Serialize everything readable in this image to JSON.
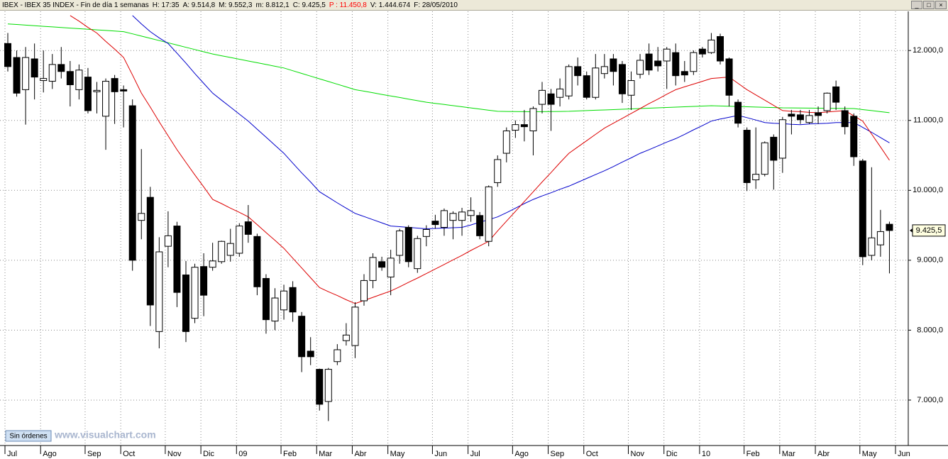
{
  "chart_data": {
    "type": "candlestick",
    "header": [
      {
        "text": "IBEX - IBEX 35 INDEX - Fin de día 1 semanas",
        "color": "#000000"
      },
      {
        "text": "H: 17:35",
        "color": "#000000"
      },
      {
        "text": "A: 9.514,8",
        "color": "#000000"
      },
      {
        "text": "M: 9.552,3",
        "color": "#000000"
      },
      {
        "text": "m: 8.812,1",
        "color": "#000000"
      },
      {
        "text": "C: 9.425,5",
        "color": "#000000"
      },
      {
        "text": "P : 11.450,8",
        "color": "#ff0000"
      },
      {
        "text": "V: 1.444.674",
        "color": "#000000"
      },
      {
        "text": "F: 28/05/2010",
        "color": "#000000"
      }
    ],
    "categories": [
      "Jul",
      null,
      null,
      null,
      "Ago",
      null,
      null,
      null,
      null,
      "Sep",
      null,
      null,
      null,
      "Oct",
      null,
      null,
      null,
      null,
      "Nov",
      null,
      null,
      null,
      "Dic",
      null,
      null,
      null,
      "09",
      null,
      null,
      null,
      null,
      "Feb",
      null,
      null,
      null,
      "Mar",
      null,
      null,
      null,
      "Abr",
      null,
      null,
      null,
      "May",
      null,
      null,
      null,
      null,
      "Jun",
      null,
      null,
      null,
      "Jul",
      null,
      null,
      null,
      null,
      "Ago",
      null,
      null,
      null,
      "Sep",
      null,
      null,
      null,
      "Oct",
      null,
      null,
      null,
      null,
      "Nov",
      null,
      null,
      null,
      "Dic",
      null,
      null,
      null,
      "10",
      null,
      null,
      null,
      null,
      "Feb",
      null,
      null,
      null,
      "Mar",
      null,
      null,
      null,
      "Abr",
      null,
      null,
      null,
      null,
      "May",
      null,
      null,
      null,
      "Jun"
    ],
    "open": [
      12100,
      11900,
      11440,
      11880,
      11570,
      11560,
      11800,
      11700,
      11440,
      11620,
      11410,
      11060,
      11600,
      11440,
      11210,
      9570,
      9900,
      7980,
      9200,
      9490,
      8790,
      8170,
      8910,
      8900,
      8980,
      9070,
      9100,
      9550,
      9340,
      8740,
      8130,
      8290,
      8610,
      8200,
      7700,
      7440,
      6980,
      7550,
      7850,
      7780,
      8420,
      8710,
      8980,
      8760,
      9070,
      9470,
      8880,
      9340,
      9560,
      9470,
      9570,
      9570,
      9640,
      9640,
      9270,
      10110,
      10530,
      10860,
      10940,
      10850,
      11230,
      11380,
      11330,
      11350,
      11770,
      11640,
      11330,
      11670,
      11880,
      11800,
      11360,
      11660,
      11950,
      11850,
      11850,
      11970,
      11700,
      11700,
      12020,
      11970,
      12200,
      11880,
      11260,
      10860,
      10150,
      10230,
      10760,
      10460,
      11090,
      11080,
      10970,
      11110,
      11140,
      11480,
      11140,
      11060,
      10420,
      9070,
      9220,
      9514.8,
      null
    ],
    "high": [
      12250,
      12000,
      12050,
      12100,
      12000,
      11950,
      12050,
      11850,
      11800,
      11750,
      11550,
      11600,
      11650,
      11500,
      11300,
      10590,
      10050,
      9330,
      9700,
      9550,
      8990,
      8950,
      9100,
      9250,
      9280,
      9450,
      9530,
      9790,
      9380,
      8800,
      8600,
      8650,
      8700,
      8260,
      7900,
      7450,
      7460,
      7800,
      8100,
      8400,
      8800,
      9100,
      9050,
      9150,
      9450,
      9500,
      9350,
      9500,
      9650,
      9740,
      9700,
      9750,
      9900,
      9690,
      10070,
      10500,
      10900,
      11000,
      11150,
      11200,
      11550,
      11450,
      11600,
      11800,
      11900,
      11700,
      11950,
      11950,
      11950,
      11850,
      11700,
      11950,
      12100,
      12050,
      12050,
      12100,
      11850,
      12000,
      12050,
      12250,
      12240,
      11900,
      11300,
      10900,
      10900,
      10700,
      10800,
      11050,
      11150,
      11150,
      11150,
      11200,
      11400,
      11570,
      11200,
      11100,
      10450,
      10330,
      9720,
      9552.3,
      null
    ],
    "low": [
      11700,
      11340,
      10940,
      11300,
      11400,
      11450,
      11600,
      11200,
      11300,
      11100,
      11100,
      10580,
      10950,
      10900,
      8850,
      9300,
      8060,
      7740,
      8900,
      8330,
      7830,
      8100,
      8200,
      8850,
      8950,
      8980,
      9050,
      9250,
      8500,
      7950,
      8000,
      8150,
      8120,
      7400,
      7500,
      6850,
      6700,
      7500,
      7780,
      7600,
      8350,
      8600,
      8850,
      8500,
      8950,
      8900,
      8820,
      9200,
      9450,
      9350,
      9300,
      9350,
      9550,
      9300,
      9200,
      10050,
      10400,
      10750,
      10700,
      10500,
      11100,
      10850,
      11200,
      11300,
      11500,
      11300,
      11300,
      11600,
      11500,
      11250,
      11150,
      11600,
      11650,
      11700,
      11450,
      11500,
      11550,
      11650,
      11900,
      11950,
      11800,
      11200,
      10900,
      9990,
      10020,
      10200,
      10010,
      10250,
      10800,
      10950,
      10950,
      10950,
      11100,
      11150,
      10800,
      10350,
      8930,
      9000,
      9050,
      8812.1,
      null
    ],
    "close": [
      11770,
      11390,
      11900,
      11620,
      11600,
      11800,
      11700,
      11510,
      11720,
      11140,
      11430,
      11560,
      11410,
      11420,
      9000,
      9670,
      8360,
      9120,
      9350,
      8540,
      7980,
      8900,
      8500,
      8990,
      9270,
      9240,
      9490,
      9370,
      8620,
      8150,
      8460,
      8560,
      8260,
      7620,
      7620,
      6940,
      7440,
      7720,
      7930,
      8330,
      8710,
      9040,
      8900,
      9030,
      9420,
      8980,
      9310,
      9440,
      9510,
      9710,
      9670,
      9690,
      9710,
      9350,
      10050,
      10440,
      10850,
      10940,
      10910,
      11170,
      11430,
      11230,
      11450,
      11770,
      11640,
      11330,
      11750,
      11770,
      11700,
      11380,
      11570,
      11860,
      11720,
      11780,
      12020,
      11640,
      11650,
      11970,
      11950,
      12150,
      11850,
      11360,
      10960,
      10110,
      10230,
      10680,
      10430,
      11010,
      11060,
      11010,
      11070,
      11070,
      11390,
      11260,
      10910,
      10480,
      9050,
      9320,
      9410,
      9425.5,
      null
    ],
    "up_color": "#ffffff",
    "down_color": "#000000",
    "lines": [
      {
        "color": "#00dd00",
        "values": [
          12380,
          12372,
          12363,
          12355,
          12346,
          12338,
          12329,
          12321,
          12312,
          12304,
          12295,
          12287,
          12278,
          12270,
          12238,
          12206,
          12174,
          12142,
          12110,
          12078,
          12046,
          12014,
          11982,
          11950,
          11925,
          11900,
          11875,
          11850,
          11825,
          11800,
          11775,
          11750,
          11711,
          11672,
          11634,
          11595,
          11556,
          11518,
          11479,
          11440,
          11418,
          11395,
          11372,
          11350,
          11328,
          11305,
          11282,
          11260,
          11244,
          11228,
          11211,
          11195,
          11179,
          11163,
          11146,
          11130,
          11128,
          11126,
          11125,
          11124,
          11125,
          11126,
          11128,
          11130,
          11135,
          11140,
          11145,
          11150,
          11155,
          11160,
          11165,
          11170,
          11175,
          11180,
          11185,
          11190,
          11195,
          11200,
          11205,
          11210,
          11206,
          11203,
          11199,
          11195,
          11191,
          11188,
          11184,
          11180,
          11179,
          11178,
          11176,
          11175,
          11174,
          11173,
          11171,
          11170,
          11155,
          11140,
          11125,
          11110,
          null
        ]
      },
      {
        "color": "#0000cc",
        "values": [
          null,
          null,
          null,
          null,
          null,
          null,
          null,
          null,
          null,
          null,
          null,
          null,
          null,
          null,
          12500,
          12380,
          12270,
          12180,
          12100,
          11960,
          11820,
          11670,
          11530,
          11390,
          11290,
          11190,
          11090,
          10990,
          10875,
          10760,
          10645,
          10530,
          10390,
          10250,
          10120,
          9980,
          9900,
          9820,
          9745,
          9670,
          9625,
          9580,
          9535,
          9490,
          9480,
          9470,
          9460,
          9450,
          9455,
          9460,
          9465,
          9470,
          9505,
          9545,
          9580,
          9620,
          9680,
          9745,
          9810,
          9870,
          9920,
          9965,
          10015,
          10060,
          10115,
          10170,
          10225,
          10280,
          10340,
          10405,
          10465,
          10530,
          10580,
          10635,
          10690,
          10740,
          10800,
          10865,
          10925,
          10990,
          11020,
          11045,
          11070,
          11040,
          11005,
          10970,
          10960,
          10955,
          10945,
          10940,
          10950,
          10955,
          10960,
          10970,
          10970,
          10970,
          10900,
          10830,
          10755,
          10680,
          null
        ]
      },
      {
        "color": "#dd0000",
        "values": [
          null,
          null,
          null,
          null,
          null,
          null,
          null,
          12500,
          12420,
          12330,
          12250,
          12130,
          12020,
          11900,
          11650,
          11390,
          11190,
          10980,
          10780,
          10580,
          10400,
          10220,
          10050,
          9870,
          9810,
          9745,
          9685,
          9620,
          9510,
          9395,
          9285,
          9170,
          9030,
          8890,
          8750,
          8610,
          8550,
          8495,
          8435,
          8380,
          8425,
          8470,
          8515,
          8560,
          8620,
          8685,
          8745,
          8810,
          8875,
          8940,
          9005,
          9070,
          9140,
          9205,
          9270,
          9420,
          9560,
          9700,
          9840,
          9980,
          10120,
          10255,
          10395,
          10530,
          10620,
          10710,
          10800,
          10890,
          10960,
          11030,
          11100,
          11170,
          11240,
          11305,
          11375,
          11440,
          11480,
          11520,
          11560,
          11600,
          11610,
          11620,
          11530,
          11440,
          11365,
          11290,
          11215,
          11140,
          11130,
          11125,
          11115,
          11110,
          11120,
          11130,
          11140,
          11065,
          10990,
          10805,
          10620,
          10430,
          null
        ]
      }
    ],
    "ylim": [
      6350,
      12560
    ],
    "yticks": [
      {
        "value": 7000,
        "label": "7.000,0"
      },
      {
        "value": 8000,
        "label": "8.000,0"
      },
      {
        "value": 9000,
        "label": "9.000,0"
      },
      {
        "value": 10000,
        "label": "10.000,0"
      },
      {
        "value": 11000,
        "label": "11.000,0"
      },
      {
        "value": 12000,
        "label": "12.000,0"
      }
    ],
    "grid": true,
    "last_price": {
      "value": 9425.5,
      "label": "9.425,5"
    },
    "button": "Sin órdenes",
    "watermark": "www.visualchart.com"
  }
}
